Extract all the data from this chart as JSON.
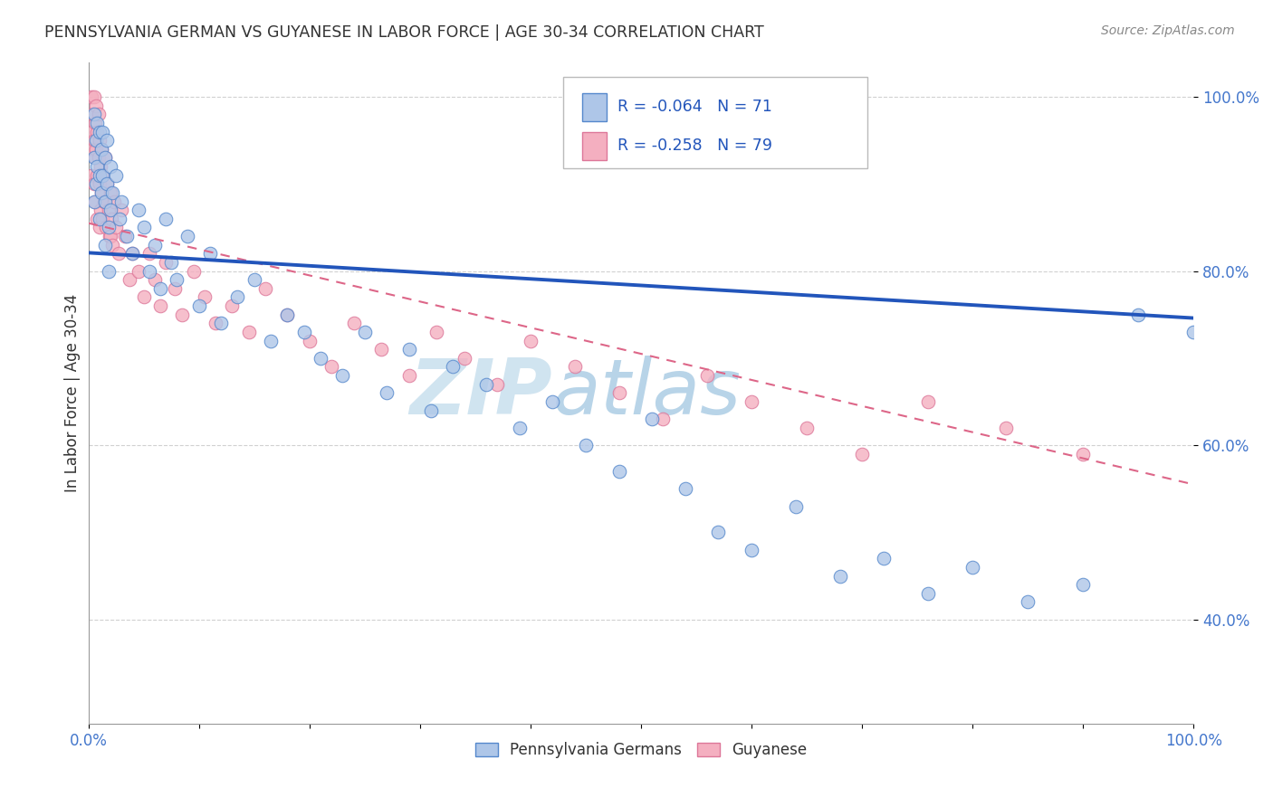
{
  "title": "PENNSYLVANIA GERMAN VS GUYANESE IN LABOR FORCE | AGE 30-34 CORRELATION CHART",
  "source": "Source: ZipAtlas.com",
  "ylabel": "In Labor Force | Age 30-34",
  "xlim": [
    0.0,
    1.0
  ],
  "ylim": [
    0.28,
    1.04
  ],
  "x_ticks": [
    0.0,
    0.1,
    0.2,
    0.3,
    0.4,
    0.5,
    0.6,
    0.7,
    0.8,
    0.9,
    1.0
  ],
  "y_ticks": [
    0.4,
    0.6,
    0.8,
    1.0
  ],
  "y_tick_labels": [
    "40.0%",
    "60.0%",
    "80.0%",
    "100.0%"
  ],
  "legend_labels": [
    "Pennsylvania Germans",
    "Guyanese"
  ],
  "blue_R": "-0.064",
  "blue_N": "71",
  "pink_R": "-0.258",
  "pink_N": "79",
  "blue_color": "#aec6e8",
  "pink_color": "#f4afc0",
  "blue_edge_color": "#5588cc",
  "pink_edge_color": "#dd7799",
  "blue_line_color": "#2255bb",
  "pink_line_color": "#dd6688",
  "watermark_color": "#d0e4f0",
  "background_color": "#ffffff",
  "grid_color": "#cccccc",
  "blue_line_intercept": 0.821,
  "blue_line_slope": -0.075,
  "pink_line_intercept": 0.855,
  "pink_line_slope": -0.3,
  "blue_scatter_x": [
    0.005,
    0.005,
    0.005,
    0.007,
    0.007,
    0.008,
    0.008,
    0.01,
    0.01,
    0.01,
    0.012,
    0.012,
    0.013,
    0.013,
    0.015,
    0.015,
    0.015,
    0.017,
    0.017,
    0.018,
    0.018,
    0.02,
    0.02,
    0.022,
    0.025,
    0.028,
    0.03,
    0.035,
    0.04,
    0.045,
    0.05,
    0.055,
    0.06,
    0.065,
    0.07,
    0.075,
    0.08,
    0.09,
    0.1,
    0.11,
    0.12,
    0.135,
    0.15,
    0.165,
    0.18,
    0.195,
    0.21,
    0.23,
    0.25,
    0.27,
    0.29,
    0.31,
    0.33,
    0.36,
    0.39,
    0.42,
    0.45,
    0.48,
    0.51,
    0.54,
    0.57,
    0.6,
    0.64,
    0.68,
    0.72,
    0.76,
    0.8,
    0.85,
    0.9,
    0.95,
    1.0
  ],
  "blue_scatter_y": [
    0.98,
    0.93,
    0.88,
    0.95,
    0.9,
    0.97,
    0.92,
    0.96,
    0.91,
    0.86,
    0.94,
    0.89,
    0.96,
    0.91,
    0.93,
    0.88,
    0.83,
    0.95,
    0.9,
    0.85,
    0.8,
    0.92,
    0.87,
    0.89,
    0.91,
    0.86,
    0.88,
    0.84,
    0.82,
    0.87,
    0.85,
    0.8,
    0.83,
    0.78,
    0.86,
    0.81,
    0.79,
    0.84,
    0.76,
    0.82,
    0.74,
    0.77,
    0.79,
    0.72,
    0.75,
    0.73,
    0.7,
    0.68,
    0.73,
    0.66,
    0.71,
    0.64,
    0.69,
    0.67,
    0.62,
    0.65,
    0.6,
    0.57,
    0.63,
    0.55,
    0.5,
    0.48,
    0.53,
    0.45,
    0.47,
    0.43,
    0.46,
    0.42,
    0.44,
    0.75,
    0.73
  ],
  "pink_scatter_x": [
    0.003,
    0.003,
    0.003,
    0.004,
    0.004,
    0.005,
    0.005,
    0.005,
    0.006,
    0.006,
    0.006,
    0.007,
    0.007,
    0.008,
    0.008,
    0.008,
    0.009,
    0.009,
    0.01,
    0.01,
    0.01,
    0.011,
    0.011,
    0.012,
    0.012,
    0.013,
    0.013,
    0.014,
    0.015,
    0.015,
    0.016,
    0.017,
    0.018,
    0.019,
    0.02,
    0.02,
    0.021,
    0.022,
    0.023,
    0.025,
    0.027,
    0.03,
    0.033,
    0.037,
    0.04,
    0.045,
    0.05,
    0.055,
    0.06,
    0.065,
    0.07,
    0.078,
    0.085,
    0.095,
    0.105,
    0.115,
    0.13,
    0.145,
    0.16,
    0.18,
    0.2,
    0.22,
    0.24,
    0.265,
    0.29,
    0.315,
    0.34,
    0.37,
    0.4,
    0.44,
    0.48,
    0.52,
    0.56,
    0.6,
    0.65,
    0.7,
    0.76,
    0.83,
    0.9
  ],
  "pink_scatter_y": [
    1.0,
    0.96,
    0.91,
    0.98,
    0.94,
    1.0,
    0.95,
    0.9,
    0.97,
    0.93,
    0.88,
    0.99,
    0.94,
    0.96,
    0.91,
    0.86,
    0.98,
    0.93,
    0.95,
    0.9,
    0.85,
    0.92,
    0.87,
    0.94,
    0.89,
    0.91,
    0.86,
    0.88,
    0.93,
    0.88,
    0.85,
    0.9,
    0.87,
    0.84,
    0.89,
    0.84,
    0.86,
    0.83,
    0.88,
    0.85,
    0.82,
    0.87,
    0.84,
    0.79,
    0.82,
    0.8,
    0.77,
    0.82,
    0.79,
    0.76,
    0.81,
    0.78,
    0.75,
    0.8,
    0.77,
    0.74,
    0.76,
    0.73,
    0.78,
    0.75,
    0.72,
    0.69,
    0.74,
    0.71,
    0.68,
    0.73,
    0.7,
    0.67,
    0.72,
    0.69,
    0.66,
    0.63,
    0.68,
    0.65,
    0.62,
    0.59,
    0.65,
    0.62,
    0.59
  ]
}
